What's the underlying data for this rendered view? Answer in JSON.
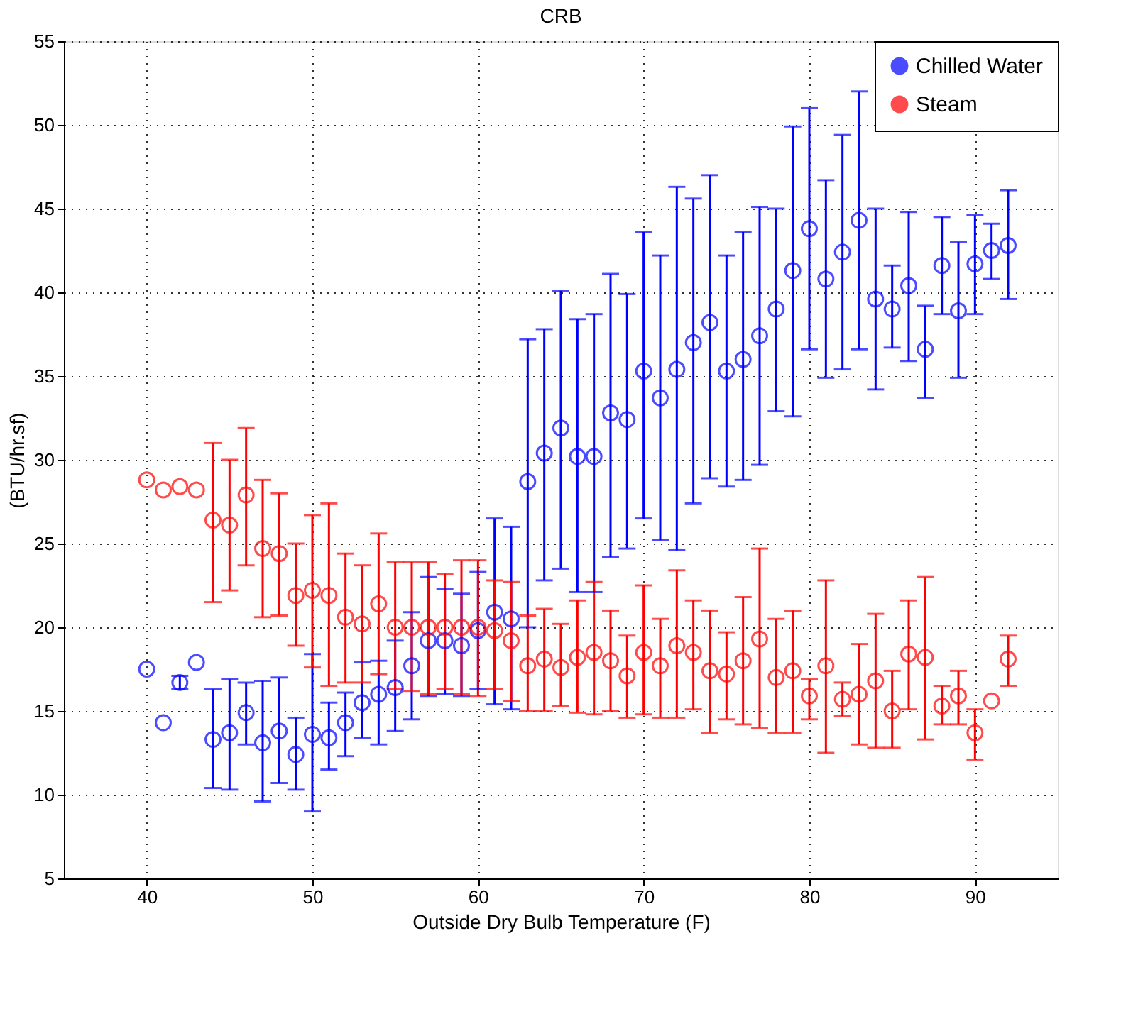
{
  "chart_data": {
    "type": "scatter",
    "title": "CRB",
    "xlabel": "Outside Dry Bulb Temperature (F)",
    "ylabel": "(BTU/hr.sf)",
    "xlim": [
      35,
      95
    ],
    "xticks": [
      40,
      50,
      60,
      70,
      80,
      90
    ],
    "ylim": [
      5,
      55
    ],
    "yticks": [
      5,
      10,
      15,
      20,
      25,
      30,
      35,
      40,
      45,
      50,
      55
    ],
    "grid": true,
    "legend": "top right",
    "marker": "circle",
    "series": [
      {
        "name": "Chilled Water",
        "color": "#0000ff",
        "x": [
          40,
          41,
          42,
          43,
          44,
          45,
          46,
          47,
          48,
          49,
          50,
          51,
          52,
          53,
          54,
          55,
          56,
          57,
          58,
          59,
          60,
          61,
          62,
          63,
          64,
          65,
          66,
          67,
          68,
          69,
          70,
          71,
          72,
          73,
          74,
          75,
          76,
          77,
          78,
          79,
          80,
          81,
          82,
          83,
          84,
          85,
          86,
          87,
          88,
          89,
          90,
          91,
          92
        ],
        "values": [
          17.5,
          14.3,
          16.7,
          17.9,
          13.3,
          13.7,
          14.9,
          13.1,
          13.8,
          12.4,
          13.6,
          13.4,
          14.3,
          15.5,
          16.0,
          16.4,
          17.7,
          19.2,
          19.2,
          18.9,
          19.8,
          20.9,
          20.5,
          28.7,
          30.4,
          31.9,
          30.2,
          30.2,
          32.8,
          32.4,
          35.3,
          33.7,
          35.4,
          37.0,
          38.2,
          35.3,
          36.0,
          37.4,
          39.0,
          41.3,
          43.8,
          40.8,
          42.4,
          44.3,
          39.6,
          39.0,
          40.4,
          36.6,
          41.6,
          38.9,
          41.7,
          42.5,
          42.8
        ],
        "errors": [
          null,
          null,
          [
            16.3,
            17.1
          ],
          null,
          [
            10.4,
            16.3
          ],
          [
            10.3,
            16.9
          ],
          [
            13.0,
            16.7
          ],
          [
            9.6,
            16.8
          ],
          [
            10.7,
            17.0
          ],
          [
            10.3,
            14.6
          ],
          [
            9.0,
            18.4
          ],
          [
            11.5,
            15.5
          ],
          [
            12.3,
            16.1
          ],
          [
            13.4,
            17.9
          ],
          [
            13.0,
            18.0
          ],
          [
            13.8,
            19.2
          ],
          [
            14.5,
            20.9
          ],
          [
            15.9,
            23.0
          ],
          [
            16.0,
            22.3
          ],
          [
            15.9,
            22.0
          ],
          [
            16.3,
            23.3
          ],
          [
            15.4,
            26.5
          ],
          [
            15.1,
            26.0
          ],
          [
            20.0,
            37.2
          ],
          [
            22.8,
            37.8
          ],
          [
            23.5,
            40.1
          ],
          [
            22.1,
            38.4
          ],
          [
            22.1,
            38.7
          ],
          [
            24.2,
            41.1
          ],
          [
            24.7,
            39.9
          ],
          [
            26.5,
            43.6
          ],
          [
            25.2,
            42.2
          ],
          [
            24.6,
            46.3
          ],
          [
            27.4,
            45.6
          ],
          [
            28.9,
            47.0
          ],
          [
            28.4,
            42.2
          ],
          [
            28.8,
            43.6
          ],
          [
            29.7,
            45.1
          ],
          [
            32.9,
            45.0
          ],
          [
            32.6,
            49.9
          ],
          [
            36.6,
            51.0
          ],
          [
            34.9,
            46.7
          ],
          [
            35.4,
            49.4
          ],
          [
            36.6,
            52.0
          ],
          [
            34.2,
            45.0
          ],
          [
            36.7,
            41.6
          ],
          [
            35.9,
            44.8
          ],
          [
            33.7,
            39.2
          ],
          [
            38.7,
            44.5
          ],
          [
            34.9,
            43.0
          ],
          [
            38.7,
            44.6
          ],
          [
            40.8,
            44.1
          ],
          [
            39.6,
            46.1
          ]
        ]
      },
      {
        "name": "Steam",
        "color": "#ff0000",
        "x": [
          40,
          41,
          42,
          43,
          44,
          45,
          46,
          47,
          48,
          49,
          50,
          51,
          52,
          53,
          54,
          55,
          56,
          57,
          58,
          59,
          60,
          61,
          62,
          63,
          64,
          65,
          66,
          67,
          68,
          69,
          70,
          71,
          72,
          73,
          74,
          75,
          76,
          77,
          78,
          79,
          80,
          81,
          82,
          83,
          84,
          85,
          86,
          87,
          88,
          89,
          90,
          91,
          92
        ],
        "values": [
          28.8,
          28.2,
          28.4,
          28.2,
          26.4,
          26.1,
          27.9,
          24.7,
          24.4,
          21.9,
          22.2,
          21.9,
          20.6,
          20.2,
          21.4,
          20.0,
          20.0,
          20.0,
          20.0,
          20.0,
          20.0,
          19.8,
          19.2,
          17.7,
          18.1,
          17.6,
          18.2,
          18.5,
          18.0,
          17.1,
          18.5,
          17.7,
          18.9,
          18.5,
          17.4,
          17.2,
          18.0,
          19.3,
          17.0,
          17.4,
          15.9,
          17.7,
          15.7,
          16.0,
          16.8,
          15.0,
          18.4,
          18.2,
          15.3,
          15.9,
          13.7,
          15.6,
          18.1
        ],
        "errors": [
          null,
          null,
          null,
          null,
          [
            21.5,
            31.0
          ],
          [
            22.2,
            30.0
          ],
          [
            23.7,
            31.9
          ],
          [
            20.6,
            28.8
          ],
          [
            20.7,
            28.0
          ],
          [
            18.9,
            25.0
          ],
          [
            17.6,
            26.7
          ],
          [
            16.5,
            27.4
          ],
          [
            16.7,
            24.4
          ],
          [
            16.7,
            23.7
          ],
          [
            17.2,
            25.6
          ],
          [
            16.3,
            23.9
          ],
          [
            16.2,
            23.9
          ],
          [
            16.0,
            23.9
          ],
          [
            16.3,
            23.2
          ],
          [
            16.0,
            24.0
          ],
          [
            15.9,
            24.0
          ],
          [
            16.3,
            22.8
          ],
          [
            15.6,
            22.7
          ],
          [
            15.0,
            20.7
          ],
          [
            15.0,
            21.1
          ],
          [
            15.3,
            20.2
          ],
          [
            14.9,
            21.6
          ],
          [
            14.8,
            22.7
          ],
          [
            15.0,
            21.0
          ],
          [
            14.6,
            19.5
          ],
          [
            14.8,
            22.5
          ],
          [
            14.6,
            20.5
          ],
          [
            14.6,
            23.4
          ],
          [
            15.1,
            21.6
          ],
          [
            13.7,
            21.0
          ],
          [
            14.5,
            19.7
          ],
          [
            14.2,
            21.8
          ],
          [
            14.0,
            24.7
          ],
          [
            13.7,
            20.5
          ],
          [
            13.7,
            21.0
          ],
          [
            14.5,
            16.9
          ],
          [
            12.5,
            22.8
          ],
          [
            14.7,
            16.7
          ],
          [
            13.0,
            19.0
          ],
          [
            12.8,
            20.8
          ],
          [
            12.8,
            17.4
          ],
          [
            15.1,
            21.6
          ],
          [
            13.3,
            23.0
          ],
          [
            14.2,
            16.5
          ],
          [
            14.2,
            17.4
          ],
          [
            12.1,
            15.1
          ],
          null,
          [
            16.5,
            19.5
          ]
        ]
      }
    ]
  }
}
